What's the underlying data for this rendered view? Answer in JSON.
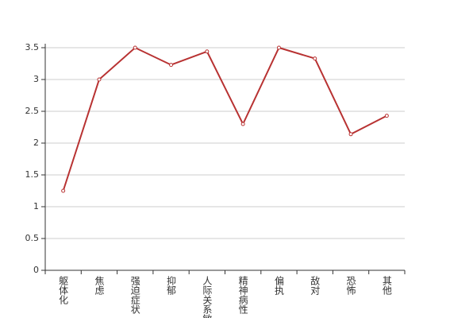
{
  "chart_data": {
    "type": "line",
    "categories": [
      "躯体化",
      "焦虑",
      "强迫症状",
      "抑郁",
      "人际关系敏感",
      "精神病性",
      "偏执",
      "敌对",
      "恐怖",
      "其他"
    ],
    "values": [
      1.25,
      3.0,
      3.5,
      3.23,
      3.44,
      2.3,
      3.5,
      3.33,
      2.14,
      2.43
    ],
    "color": "#b83232",
    "ylim": [
      0,
      3.5
    ],
    "yticks": [
      0,
      0.5,
      1,
      1.5,
      2,
      2.5,
      3,
      3.5
    ],
    "grid": true
  }
}
